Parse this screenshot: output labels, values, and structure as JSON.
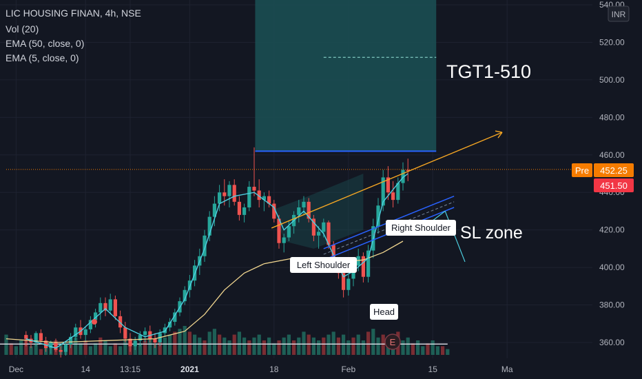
{
  "header": {
    "symbol_line": "LIC HOUSING FINAN, 4h, NSE",
    "indicators": [
      "Vol (20)",
      "EMA (50, close, 0)",
      "EMA (5, close, 0)"
    ]
  },
  "currency_label": "INR",
  "annotations": {
    "target": "TGT1-510",
    "sl_zone": "SL zone",
    "left_shoulder": "Left Shoulder",
    "head": "Head",
    "right_shoulder": "Right Shoulder",
    "earnings_marker": "E"
  },
  "price_badges": {
    "pre_label": "Pre",
    "pre_value": "452.25",
    "last_value": "451.50"
  },
  "chart_data": {
    "type": "candlestick",
    "title": "LIC HOUSING FINAN, 4h, NSE",
    "y_axis": {
      "ticks": [
        360,
        380,
        400,
        420,
        440,
        460,
        480,
        500,
        520,
        540
      ],
      "tick_labels": [
        "360.00",
        "380.00",
        "400.00",
        "420.00",
        "440.00",
        "460.00",
        "480.00",
        "500.00",
        "520.00",
        "540.00"
      ],
      "ylim": [
        352,
        545
      ]
    },
    "x_axis": {
      "tick_labels": [
        "Dec",
        "14",
        "13:15",
        "2021",
        "18",
        "Feb",
        "15",
        "Ma"
      ]
    },
    "x_index_range": [
      0,
      100
    ],
    "x_tick_index": [
      2,
      16,
      25,
      37,
      54,
      69,
      86,
      101
    ],
    "ohlc": [
      {
        "i": 4,
        "o": 364,
        "h": 366,
        "l": 358,
        "c": 362
      },
      {
        "i": 5,
        "o": 362,
        "h": 364,
        "l": 357,
        "c": 360
      },
      {
        "i": 6,
        "o": 360,
        "h": 366,
        "l": 358,
        "c": 365
      },
      {
        "i": 7,
        "o": 365,
        "h": 367,
        "l": 359,
        "c": 361
      },
      {
        "i": 8,
        "o": 361,
        "h": 363,
        "l": 355,
        "c": 357
      },
      {
        "i": 9,
        "o": 357,
        "h": 361,
        "l": 354,
        "c": 360
      },
      {
        "i": 10,
        "o": 360,
        "h": 362,
        "l": 355,
        "c": 356
      },
      {
        "i": 11,
        "o": 356,
        "h": 358,
        "l": 352,
        "c": 355
      },
      {
        "i": 12,
        "o": 355,
        "h": 360,
        "l": 353,
        "c": 359
      },
      {
        "i": 13,
        "o": 359,
        "h": 365,
        "l": 357,
        "c": 363
      },
      {
        "i": 14,
        "o": 363,
        "h": 370,
        "l": 361,
        "c": 368
      },
      {
        "i": 15,
        "o": 368,
        "h": 372,
        "l": 362,
        "c": 364
      },
      {
        "i": 16,
        "o": 364,
        "h": 368,
        "l": 360,
        "c": 367
      },
      {
        "i": 17,
        "o": 367,
        "h": 374,
        "l": 365,
        "c": 372
      },
      {
        "i": 18,
        "o": 372,
        "h": 378,
        "l": 368,
        "c": 376
      },
      {
        "i": 19,
        "o": 376,
        "h": 384,
        "l": 372,
        "c": 381
      },
      {
        "i": 20,
        "o": 381,
        "h": 384,
        "l": 374,
        "c": 377
      },
      {
        "i": 21,
        "o": 377,
        "h": 386,
        "l": 375,
        "c": 383
      },
      {
        "i": 22,
        "o": 383,
        "h": 385,
        "l": 372,
        "c": 374
      },
      {
        "i": 23,
        "o": 374,
        "h": 377,
        "l": 365,
        "c": 368
      },
      {
        "i": 24,
        "o": 368,
        "h": 371,
        "l": 360,
        "c": 362
      },
      {
        "i": 25,
        "o": 362,
        "h": 365,
        "l": 355,
        "c": 358
      },
      {
        "i": 26,
        "o": 358,
        "h": 363,
        "l": 356,
        "c": 361
      },
      {
        "i": 27,
        "o": 361,
        "h": 366,
        "l": 358,
        "c": 364
      },
      {
        "i": 28,
        "o": 364,
        "h": 368,
        "l": 360,
        "c": 366
      },
      {
        "i": 29,
        "o": 366,
        "h": 369,
        "l": 360,
        "c": 362
      },
      {
        "i": 30,
        "o": 362,
        "h": 365,
        "l": 357,
        "c": 360
      },
      {
        "i": 31,
        "o": 360,
        "h": 367,
        "l": 358,
        "c": 365
      },
      {
        "i": 32,
        "o": 365,
        "h": 370,
        "l": 363,
        "c": 368
      },
      {
        "i": 33,
        "o": 368,
        "h": 373,
        "l": 366,
        "c": 371
      },
      {
        "i": 34,
        "o": 371,
        "h": 378,
        "l": 369,
        "c": 376
      },
      {
        "i": 35,
        "o": 376,
        "h": 384,
        "l": 374,
        "c": 382
      },
      {
        "i": 36,
        "o": 382,
        "h": 390,
        "l": 380,
        "c": 388
      },
      {
        "i": 37,
        "o": 388,
        "h": 396,
        "l": 384,
        "c": 393
      },
      {
        "i": 38,
        "o": 393,
        "h": 404,
        "l": 390,
        "c": 401
      },
      {
        "i": 39,
        "o": 401,
        "h": 410,
        "l": 396,
        "c": 406
      },
      {
        "i": 40,
        "o": 406,
        "h": 420,
        "l": 403,
        "c": 417
      },
      {
        "i": 41,
        "o": 417,
        "h": 430,
        "l": 414,
        "c": 427
      },
      {
        "i": 42,
        "o": 427,
        "h": 438,
        "l": 422,
        "c": 434
      },
      {
        "i": 43,
        "o": 434,
        "h": 444,
        "l": 430,
        "c": 440
      },
      {
        "i": 44,
        "o": 440,
        "h": 447,
        "l": 433,
        "c": 438
      },
      {
        "i": 45,
        "o": 438,
        "h": 446,
        "l": 432,
        "c": 444
      },
      {
        "i": 46,
        "o": 444,
        "h": 447,
        "l": 433,
        "c": 435
      },
      {
        "i": 47,
        "o": 435,
        "h": 438,
        "l": 425,
        "c": 428
      },
      {
        "i": 48,
        "o": 428,
        "h": 434,
        "l": 424,
        "c": 432
      },
      {
        "i": 49,
        "o": 432,
        "h": 446,
        "l": 430,
        "c": 443
      },
      {
        "i": 50,
        "o": 443,
        "h": 464,
        "l": 438,
        "c": 441
      },
      {
        "i": 51,
        "o": 441,
        "h": 447,
        "l": 432,
        "c": 436
      },
      {
        "i": 52,
        "o": 436,
        "h": 440,
        "l": 430,
        "c": 438
      },
      {
        "i": 53,
        "o": 438,
        "h": 441,
        "l": 432,
        "c": 434
      },
      {
        "i": 54,
        "o": 434,
        "h": 436,
        "l": 424,
        "c": 426
      },
      {
        "i": 55,
        "o": 426,
        "h": 428,
        "l": 410,
        "c": 413
      },
      {
        "i": 56,
        "o": 413,
        "h": 418,
        "l": 408,
        "c": 416
      },
      {
        "i": 57,
        "o": 416,
        "h": 425,
        "l": 414,
        "c": 422
      },
      {
        "i": 58,
        "o": 422,
        "h": 430,
        "l": 418,
        "c": 428
      },
      {
        "i": 59,
        "o": 428,
        "h": 436,
        "l": 424,
        "c": 432
      },
      {
        "i": 60,
        "o": 432,
        "h": 438,
        "l": 428,
        "c": 435
      },
      {
        "i": 61,
        "o": 435,
        "h": 437,
        "l": 424,
        "c": 426
      },
      {
        "i": 62,
        "o": 426,
        "h": 428,
        "l": 414,
        "c": 417
      },
      {
        "i": 63,
        "o": 417,
        "h": 422,
        "l": 410,
        "c": 419
      },
      {
        "i": 64,
        "o": 419,
        "h": 426,
        "l": 416,
        "c": 424
      },
      {
        "i": 65,
        "o": 424,
        "h": 425,
        "l": 410,
        "c": 412
      },
      {
        "i": 66,
        "o": 412,
        "h": 414,
        "l": 398,
        "c": 402
      },
      {
        "i": 67,
        "o": 402,
        "h": 405,
        "l": 394,
        "c": 397
      },
      {
        "i": 68,
        "o": 397,
        "h": 400,
        "l": 384,
        "c": 388
      },
      {
        "i": 69,
        "o": 388,
        "h": 396,
        "l": 385,
        "c": 394
      },
      {
        "i": 70,
        "o": 394,
        "h": 404,
        "l": 390,
        "c": 401
      },
      {
        "i": 71,
        "o": 401,
        "h": 410,
        "l": 398,
        "c": 406
      },
      {
        "i": 72,
        "o": 406,
        "h": 408,
        "l": 392,
        "c": 395
      },
      {
        "i": 73,
        "o": 395,
        "h": 412,
        "l": 392,
        "c": 409
      },
      {
        "i": 74,
        "o": 409,
        "h": 426,
        "l": 405,
        "c": 422
      },
      {
        "i": 75,
        "o": 422,
        "h": 437,
        "l": 418,
        "c": 433
      },
      {
        "i": 76,
        "o": 433,
        "h": 452,
        "l": 430,
        "c": 448
      },
      {
        "i": 77,
        "o": 448,
        "h": 454,
        "l": 436,
        "c": 440
      },
      {
        "i": 78,
        "o": 440,
        "h": 446,
        "l": 432,
        "c": 436
      },
      {
        "i": 79,
        "o": 436,
        "h": 448,
        "l": 434,
        "c": 445
      },
      {
        "i": 80,
        "o": 445,
        "h": 456,
        "l": 441,
        "c": 452
      },
      {
        "i": 81,
        "o": 452,
        "h": 458,
        "l": 446,
        "c": 451.5
      }
    ],
    "volume": [
      7,
      4,
      3,
      5,
      6,
      3,
      4,
      2,
      3,
      4,
      5,
      4,
      3,
      5,
      6,
      4,
      5,
      3,
      4,
      6,
      5,
      3,
      4,
      3,
      5,
      4,
      3,
      4,
      5,
      6,
      4,
      5,
      6,
      7,
      8,
      9,
      10,
      8,
      7,
      6,
      5,
      8,
      9,
      7,
      6,
      5,
      7,
      8,
      6,
      5,
      6,
      7,
      5,
      6,
      4,
      5,
      6,
      7,
      5,
      6,
      8,
      7,
      6,
      5,
      6,
      7,
      8,
      6,
      7,
      5,
      6,
      7,
      5,
      8,
      9,
      6,
      7,
      5,
      6,
      8,
      5,
      6,
      4,
      5,
      3,
      4,
      5,
      3,
      3,
      2
    ],
    "volume_ma": 3.5,
    "ema5": [
      [
        4,
        362
      ],
      [
        10,
        357
      ],
      [
        15,
        366
      ],
      [
        20,
        378
      ],
      [
        24,
        368
      ],
      [
        28,
        363
      ],
      [
        32,
        366
      ],
      [
        36,
        383
      ],
      [
        40,
        410
      ],
      [
        43,
        434
      ],
      [
        46,
        438
      ],
      [
        50,
        440
      ],
      [
        54,
        432
      ],
      [
        56,
        420
      ],
      [
        60,
        430
      ],
      [
        64,
        418
      ],
      [
        68,
        395
      ],
      [
        70,
        398
      ],
      [
        73,
        405
      ],
      [
        76,
        435
      ],
      [
        80,
        448
      ],
      [
        81,
        450
      ]
    ],
    "ema50": [
      [
        0,
        362
      ],
      [
        10,
        360
      ],
      [
        20,
        361
      ],
      [
        30,
        362
      ],
      [
        36,
        366
      ],
      [
        40,
        375
      ],
      [
        44,
        388
      ],
      [
        48,
        397
      ],
      [
        52,
        402
      ],
      [
        58,
        405
      ],
      [
        64,
        405
      ],
      [
        68,
        403
      ],
      [
        72,
        404
      ],
      [
        76,
        408
      ],
      [
        80,
        414
      ]
    ]
  }
}
